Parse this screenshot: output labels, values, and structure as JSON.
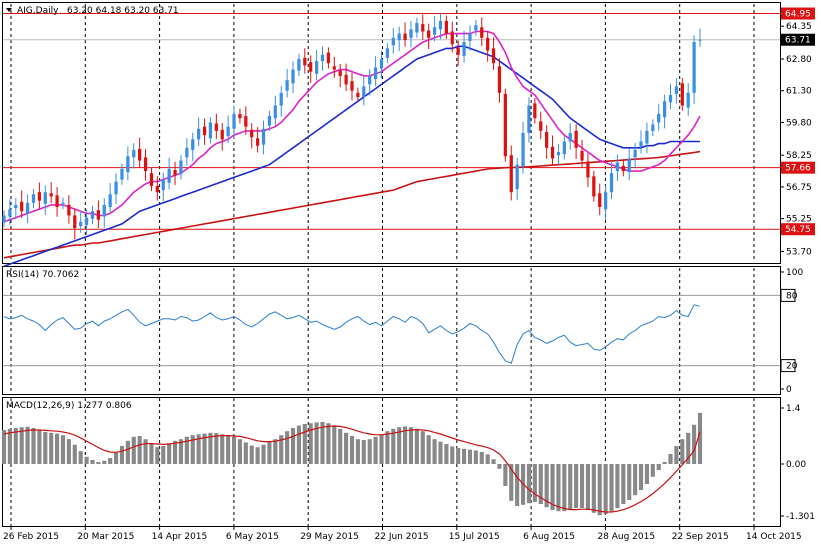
{
  "header": {
    "symbol": "AIG,Daily",
    "ohlc": "63.20 64.18 63.20 63.71"
  },
  "colors": {
    "up": "#3a8ee6",
    "down": "#dd1111",
    "ma_fast": "#dd22cc",
    "ma_mid": "#1a2ad0",
    "ma_slow": "#cc1111",
    "level_line": "#dd1111",
    "rsi_line": "#2a7fd4",
    "macd_hist": "#888888",
    "macd_signal": "#cc1111",
    "grid": "#000000",
    "price_tag": "#dd1111",
    "current_tag": "#000000"
  },
  "chart_data": [
    {
      "type": "candlestick",
      "panel": "price",
      "ylim": [
        53.2,
        65.4
      ],
      "y_ticks": [
        "64.35",
        "62.80",
        "61.30",
        "59.80",
        "58.25",
        "56.75",
        "55.25",
        "53.70"
      ],
      "levels": [
        {
          "label": "64.95",
          "value": 64.95
        },
        {
          "label": "57.66",
          "value": 57.66
        },
        {
          "label": "54.75",
          "value": 54.75
        }
      ],
      "current_price": {
        "label": "63.71",
        "value": 63.71
      },
      "x_ticks": [
        "26 Feb 2015",
        "20 Mar 2015",
        "14 Apr 2015",
        "6 May 2015",
        "29 May 2015",
        "22 Jun 2015",
        "15 Jul 2015",
        "6 Aug 2015",
        "28 Aug 2015",
        "22 Sep 2015",
        "14 Oct 2015"
      ],
      "closes": [
        55.4,
        55.7,
        55.9,
        55.6,
        56.0,
        56.4,
        56.1,
        56.5,
        56.3,
        55.8,
        56.0,
        55.4,
        54.8,
        55.1,
        55.3,
        55.6,
        55.2,
        55.9,
        56.4,
        57.0,
        57.6,
        58.2,
        58.5,
        58.0,
        57.5,
        56.8,
        56.5,
        57.1,
        57.6,
        57.3,
        58.0,
        58.6,
        59.0,
        59.5,
        59.2,
        59.8,
        59.4,
        59.0,
        59.6,
        60.2,
        60.0,
        59.6,
        59.1,
        58.7,
        59.5,
        60.1,
        60.6,
        61.2,
        61.8,
        62.3,
        62.8,
        62.5,
        62.2,
        62.7,
        63.0,
        62.6,
        62.3,
        62.0,
        61.6,
        61.3,
        61.0,
        61.5,
        62.0,
        62.4,
        62.8,
        63.3,
        63.8,
        64.0,
        63.7,
        64.2,
        64.5,
        64.1,
        63.8,
        64.3,
        64.6,
        64.0,
        63.5,
        63.0,
        63.6,
        64.0,
        64.4,
        63.8,
        63.2,
        62.6,
        61.2,
        58.2,
        56.5,
        57.8,
        59.3,
        60.6,
        60.0,
        59.4,
        58.6,
        58.1,
        58.4,
        58.9,
        59.3,
        58.6,
        58.0,
        57.2,
        56.3,
        55.8,
        56.5,
        57.4,
        57.9,
        57.5,
        58.1,
        58.5,
        58.9,
        59.4,
        59.7,
        60.2,
        60.8,
        61.1,
        61.5,
        60.6,
        61.2,
        63.6,
        63.71
      ],
      "ma_fast": [
        55.1,
        55.2,
        55.3,
        55.4,
        55.5,
        55.6,
        55.7,
        55.8,
        55.9,
        55.9,
        55.9,
        55.8,
        55.7,
        55.6,
        55.5,
        55.5,
        55.4,
        55.4,
        55.5,
        55.7,
        55.9,
        56.2,
        56.5,
        56.7,
        56.9,
        57.0,
        57.0,
        57.1,
        57.2,
        57.3,
        57.4,
        57.6,
        57.8,
        58.1,
        58.3,
        58.6,
        58.8,
        58.9,
        59.0,
        59.2,
        59.3,
        59.4,
        59.4,
        59.4,
        59.4,
        59.5,
        59.6,
        59.8,
        60.1,
        60.4,
        60.8,
        61.1,
        61.4,
        61.7,
        61.9,
        62.1,
        62.2,
        62.3,
        62.3,
        62.2,
        62.1,
        62.0,
        62.0,
        62.1,
        62.2,
        62.4,
        62.6,
        62.8,
        63.0,
        63.2,
        63.4,
        63.6,
        63.7,
        63.8,
        63.9,
        64.0,
        64.0,
        64.0,
        64.0,
        64.0,
        64.1,
        64.1,
        64.1,
        64.0,
        63.6,
        63.1,
        62.4,
        61.9,
        61.5,
        61.3,
        61.1,
        60.7,
        60.3,
        59.9,
        59.5,
        59.2,
        59.0,
        58.8,
        58.6,
        58.4,
        58.2,
        58.0,
        57.9,
        57.8,
        57.7,
        57.6,
        57.5,
        57.5,
        57.5,
        57.6,
        57.7,
        57.8,
        58.0,
        58.3,
        58.6,
        58.9,
        59.2,
        59.6,
        60.1
      ],
      "ma_mid": [
        53.0,
        53.1,
        53.2,
        53.3,
        53.4,
        53.5,
        53.6,
        53.7,
        53.8,
        53.9,
        54.0,
        54.1,
        54.2,
        54.3,
        54.4,
        54.5,
        54.6,
        54.7,
        54.8,
        54.9,
        55.0,
        55.2,
        55.4,
        55.6,
        55.7,
        55.8,
        55.9,
        56.0,
        56.1,
        56.2,
        56.3,
        56.4,
        56.5,
        56.6,
        56.7,
        56.8,
        56.9,
        57.0,
        57.1,
        57.2,
        57.3,
        57.4,
        57.5,
        57.6,
        57.7,
        57.8,
        58.0,
        58.2,
        58.4,
        58.6,
        58.8,
        59.0,
        59.2,
        59.4,
        59.6,
        59.8,
        60.0,
        60.2,
        60.4,
        60.6,
        60.8,
        61.0,
        61.2,
        61.4,
        61.6,
        61.8,
        62.0,
        62.2,
        62.4,
        62.6,
        62.8,
        62.9,
        63.0,
        63.1,
        63.2,
        63.3,
        63.3,
        63.4,
        63.4,
        63.3,
        63.2,
        63.1,
        63.0,
        62.9,
        62.7,
        62.5,
        62.3,
        62.1,
        61.9,
        61.7,
        61.5,
        61.3,
        61.1,
        60.9,
        60.6,
        60.3,
        60.0,
        59.8,
        59.6,
        59.4,
        59.2,
        59.0,
        58.9,
        58.8,
        58.7,
        58.6,
        58.6,
        58.6,
        58.6,
        58.7,
        58.7,
        58.8,
        58.8,
        58.9,
        58.9,
        58.9,
        58.9,
        58.9,
        58.9
      ],
      "ma_slow": [
        53.4,
        53.45,
        53.5,
        53.55,
        53.6,
        53.65,
        53.7,
        53.75,
        53.8,
        53.85,
        53.9,
        53.95,
        54.0,
        54.0,
        54.05,
        54.1,
        54.1,
        54.15,
        54.2,
        54.25,
        54.3,
        54.35,
        54.4,
        54.45,
        54.5,
        54.55,
        54.6,
        54.65,
        54.7,
        54.75,
        54.8,
        54.85,
        54.9,
        54.95,
        55.0,
        55.05,
        55.1,
        55.15,
        55.2,
        55.25,
        55.3,
        55.35,
        55.4,
        55.45,
        55.5,
        55.55,
        55.6,
        55.65,
        55.7,
        55.75,
        55.8,
        55.85,
        55.9,
        55.95,
        56.0,
        56.05,
        56.1,
        56.15,
        56.2,
        56.25,
        56.3,
        56.35,
        56.4,
        56.45,
        56.5,
        56.55,
        56.6,
        56.7,
        56.8,
        56.9,
        57.0,
        57.05,
        57.1,
        57.15,
        57.2,
        57.25,
        57.3,
        57.35,
        57.4,
        57.45,
        57.5,
        57.55,
        57.6,
        57.62,
        57.64,
        57.66,
        57.67,
        57.68,
        57.69,
        57.7,
        57.72,
        57.74,
        57.76,
        57.78,
        57.8,
        57.82,
        57.84,
        57.86,
        57.88,
        57.9,
        57.92,
        57.94,
        57.96,
        57.98,
        58.0,
        58.02,
        58.04,
        58.06,
        58.08,
        58.1,
        58.12,
        58.14,
        58.18,
        58.22,
        58.26,
        58.3,
        58.34,
        58.38,
        58.42
      ]
    },
    {
      "type": "line",
      "panel": "rsi",
      "title": "RSI(14) 70.7062",
      "ylim": [
        0,
        100
      ],
      "y_ticks": [
        "100",
        "80",
        "20",
        "0"
      ],
      "levels": [
        {
          "label": "80",
          "value": 80
        },
        {
          "label": "20",
          "value": 20
        }
      ],
      "values": [
        62,
        60,
        61,
        63,
        60,
        58,
        55,
        50,
        55,
        59,
        61,
        56,
        51,
        52,
        56,
        58,
        54,
        58,
        60,
        63,
        66,
        68,
        63,
        57,
        54,
        56,
        58,
        60,
        60,
        59,
        62,
        61,
        58,
        59,
        62,
        65,
        61,
        59,
        60,
        62,
        59,
        55,
        53,
        56,
        60,
        64,
        66,
        63,
        60,
        61,
        63,
        60,
        57,
        58,
        55,
        53,
        51,
        53,
        57,
        60,
        62,
        58,
        55,
        57,
        54,
        58,
        62,
        60,
        57,
        62,
        60,
        56,
        48,
        51,
        54,
        50,
        47,
        49,
        52,
        56,
        54,
        50,
        47,
        40,
        31,
        24,
        22,
        38,
        47,
        50,
        44,
        42,
        39,
        41,
        44,
        46,
        40,
        37,
        38,
        39,
        34,
        33,
        36,
        40,
        43,
        42,
        47,
        50,
        54,
        56,
        58,
        62,
        61,
        63,
        67,
        63,
        62,
        72,
        70.7
      ]
    },
    {
      "type": "bar+line",
      "panel": "macd",
      "title": "MACD(12,26,9) 1.277 0.806",
      "ylim": [
        -1.5,
        1.6
      ],
      "y_ticks": [
        "1.4",
        "0.00",
        "-1.301"
      ],
      "histogram": [
        0.85,
        0.88,
        0.9,
        0.92,
        0.93,
        0.9,
        0.85,
        0.8,
        0.78,
        0.76,
        0.72,
        0.62,
        0.48,
        0.32,
        0.18,
        0.1,
        0.05,
        0.08,
        0.15,
        0.28,
        0.45,
        0.58,
        0.68,
        0.7,
        0.62,
        0.5,
        0.42,
        0.45,
        0.52,
        0.58,
        0.62,
        0.68,
        0.72,
        0.74,
        0.76,
        0.78,
        0.77,
        0.74,
        0.7,
        0.68,
        0.62,
        0.54,
        0.46,
        0.42,
        0.48,
        0.55,
        0.62,
        0.72,
        0.82,
        0.9,
        0.96,
        1.0,
        1.02,
        1.04,
        1.05,
        1.02,
        0.96,
        0.88,
        0.78,
        0.7,
        0.62,
        0.6,
        0.62,
        0.68,
        0.74,
        0.82,
        0.88,
        0.92,
        0.94,
        0.92,
        0.88,
        0.82,
        0.72,
        0.62,
        0.56,
        0.5,
        0.44,
        0.4,
        0.38,
        0.36,
        0.34,
        0.3,
        0.24,
        0.12,
        -0.12,
        -0.55,
        -0.92,
        -1.05,
        -1.02,
        -0.98,
        -0.95,
        -1.0,
        -1.08,
        -1.15,
        -1.18,
        -1.18,
        -1.15,
        -1.1,
        -1.1,
        -1.15,
        -1.22,
        -1.28,
        -1.25,
        -1.18,
        -1.1,
        -1.0,
        -0.9,
        -0.78,
        -0.65,
        -0.5,
        -0.32,
        -0.15,
        0.05,
        0.25,
        0.45,
        0.62,
        0.78,
        0.98,
        1.277
      ],
      "signal": [
        0.75,
        0.78,
        0.8,
        0.82,
        0.84,
        0.85,
        0.85,
        0.84,
        0.83,
        0.82,
        0.8,
        0.77,
        0.72,
        0.65,
        0.57,
        0.49,
        0.41,
        0.34,
        0.3,
        0.29,
        0.32,
        0.37,
        0.43,
        0.48,
        0.51,
        0.51,
        0.5,
        0.49,
        0.5,
        0.52,
        0.54,
        0.57,
        0.6,
        0.63,
        0.66,
        0.68,
        0.7,
        0.71,
        0.71,
        0.7,
        0.69,
        0.66,
        0.62,
        0.58,
        0.56,
        0.56,
        0.57,
        0.6,
        0.64,
        0.69,
        0.75,
        0.8,
        0.85,
        0.89,
        0.92,
        0.94,
        0.95,
        0.94,
        0.91,
        0.87,
        0.82,
        0.78,
        0.75,
        0.73,
        0.73,
        0.75,
        0.77,
        0.8,
        0.83,
        0.85,
        0.86,
        0.85,
        0.83,
        0.79,
        0.75,
        0.7,
        0.65,
        0.6,
        0.56,
        0.52,
        0.48,
        0.45,
        0.41,
        0.35,
        0.25,
        0.08,
        -0.13,
        -0.33,
        -0.5,
        -0.64,
        -0.75,
        -0.84,
        -0.93,
        -1.01,
        -1.07,
        -1.11,
        -1.14,
        -1.14,
        -1.13,
        -1.13,
        -1.15,
        -1.18,
        -1.2,
        -1.2,
        -1.18,
        -1.14,
        -1.09,
        -1.02,
        -0.94,
        -0.85,
        -0.74,
        -0.62,
        -0.49,
        -0.34,
        -0.18,
        -0.02,
        0.15,
        0.33,
        0.806
      ]
    }
  ]
}
